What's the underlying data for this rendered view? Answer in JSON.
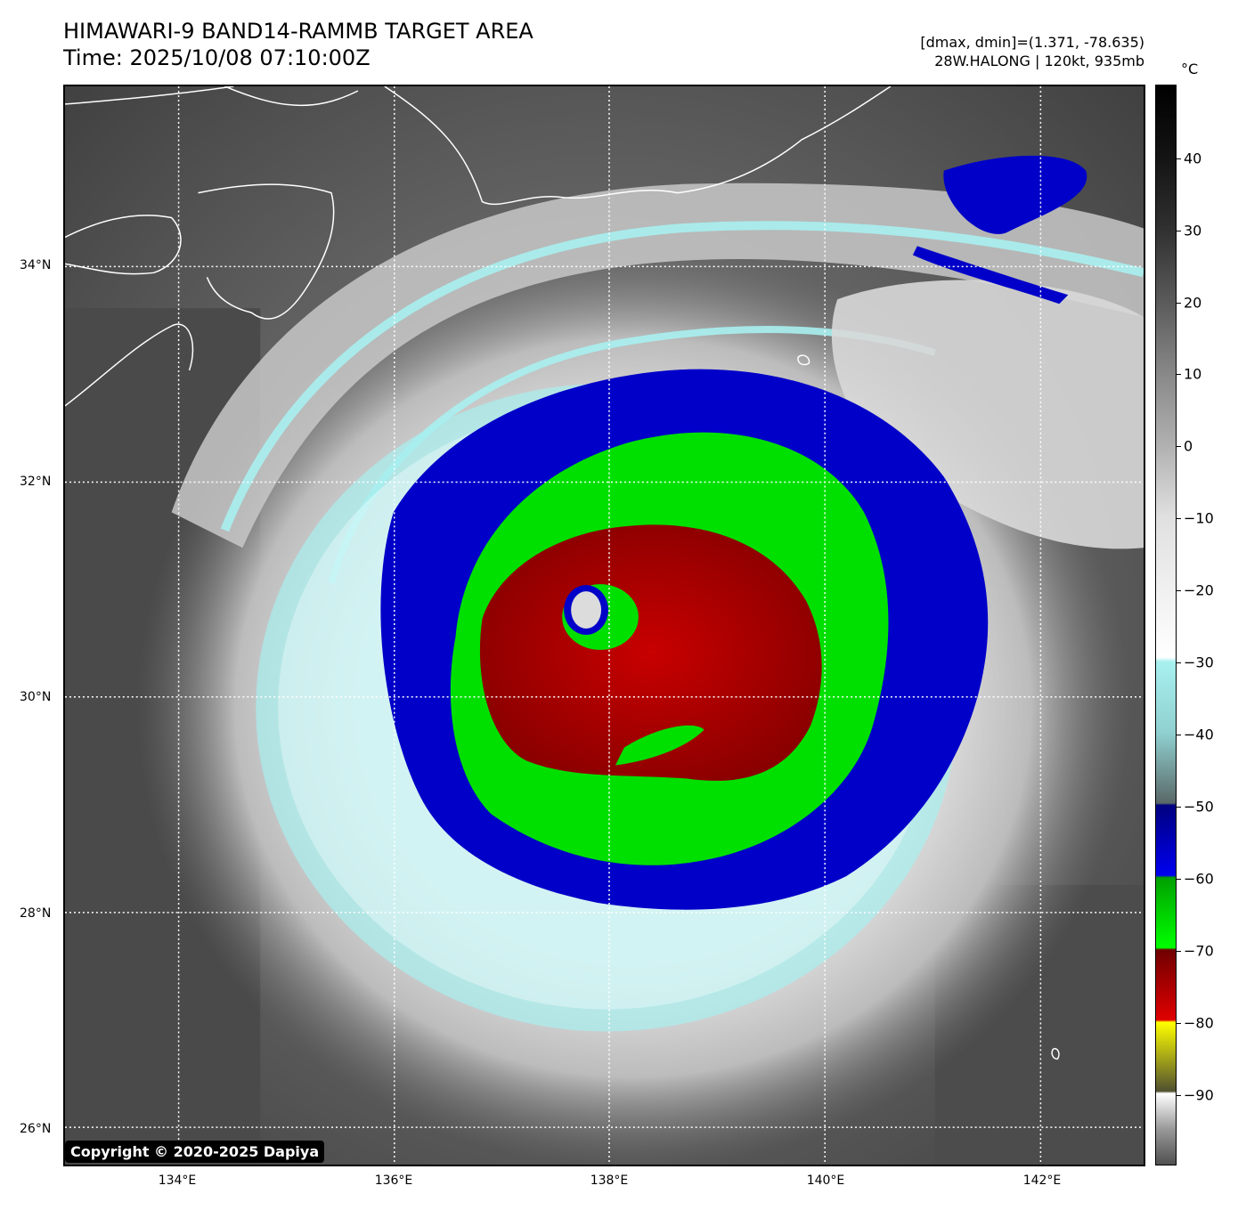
{
  "title": {
    "line1": "HIMAWARI-9 BAND14-RAMMB TARGET AREA",
    "line2": "Time: 2025/10/08 07:10:00Z"
  },
  "stats": {
    "dmax_dmin": "[dmax, dmin]=(1.371, -78.635)",
    "storm": "28W.HALONG | 120kt, 935mb"
  },
  "map": {
    "lat_labels": [
      "34°N",
      "32°N",
      "30°N",
      "28°N",
      "26°N"
    ],
    "lon_labels": [
      "134°E",
      "136°E",
      "138°E",
      "140°E",
      "142°E"
    ],
    "gridlines": "dotted white",
    "storm_center": {
      "lat": 30.8,
      "lon": 137.8
    }
  },
  "copyright": "Copyright © 2020-2025 Dapiya",
  "colorbar": {
    "unit": "°C",
    "ticks": [
      "40",
      "30",
      "20",
      "10",
      "0",
      "−10",
      "−20",
      "−30",
      "−40",
      "−50",
      "−60",
      "−70",
      "−80",
      "−90"
    ],
    "colors": {
      "blue": "#0000c8",
      "green": "#00e000",
      "red": "#b00000",
      "cyan": "#a8f0f0",
      "yellow": "#ffff00"
    }
  }
}
